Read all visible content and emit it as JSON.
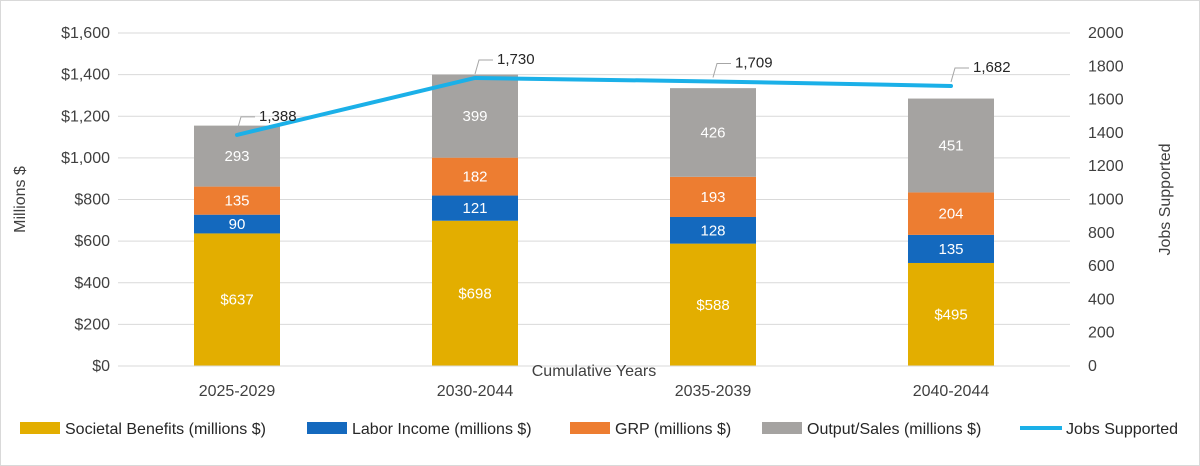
{
  "chart_data": {
    "type": "bar",
    "stacked": true,
    "title": "",
    "xlabel": "Cumulative Years",
    "ylabel": "Millions $",
    "y2label": "Jobs Supported",
    "ylim": [
      0,
      1600
    ],
    "y2lim": [
      0,
      2000
    ],
    "y_ticks": [
      "$0",
      "$200",
      "$400",
      "$600",
      "$800",
      "$1,000",
      "$1,200",
      "$1,400",
      "$1,600"
    ],
    "y_tick_values": [
      0,
      200,
      400,
      600,
      800,
      1000,
      1200,
      1400,
      1600
    ],
    "y2_ticks": [
      "0",
      "200",
      "400",
      "600",
      "800",
      "1000",
      "1200",
      "1400",
      "1600",
      "1800",
      "2000"
    ],
    "y2_tick_values": [
      0,
      200,
      400,
      600,
      800,
      1000,
      1200,
      1400,
      1600,
      1800,
      2000
    ],
    "categories": [
      "2025-2029",
      "2030-2044",
      "2035-2039",
      "2040-2044"
    ],
    "series": [
      {
        "name": "Societal Benefits (millions $)",
        "color": "#E3AE00",
        "values": [
          637,
          698,
          588,
          495
        ],
        "labels": [
          "$637",
          "$698",
          "$588",
          "$495"
        ]
      },
      {
        "name": "Labor Income (millions $)",
        "color": "#1469BE",
        "values": [
          90,
          121,
          128,
          135
        ],
        "labels": [
          "90",
          "121",
          "128",
          "135"
        ]
      },
      {
        "name": "GRP (millions $)",
        "color": "#ED7D31",
        "values": [
          135,
          182,
          193,
          204
        ],
        "labels": [
          "135",
          "182",
          "193",
          "204"
        ]
      },
      {
        "name": "Output/Sales (millions $)",
        "color": "#A5A3A1",
        "values": [
          293,
          399,
          426,
          451
        ],
        "labels": [
          "293",
          "399",
          "426",
          "451"
        ]
      }
    ],
    "line_series": {
      "name": "Jobs Supported",
      "color": "#1BB0E8",
      "axis": "secondary",
      "values": [
        1388,
        1730,
        1709,
        1682
      ],
      "labels": [
        "1,388",
        "1,730",
        "1,709",
        "1,682"
      ]
    },
    "legend_position": "bottom"
  }
}
